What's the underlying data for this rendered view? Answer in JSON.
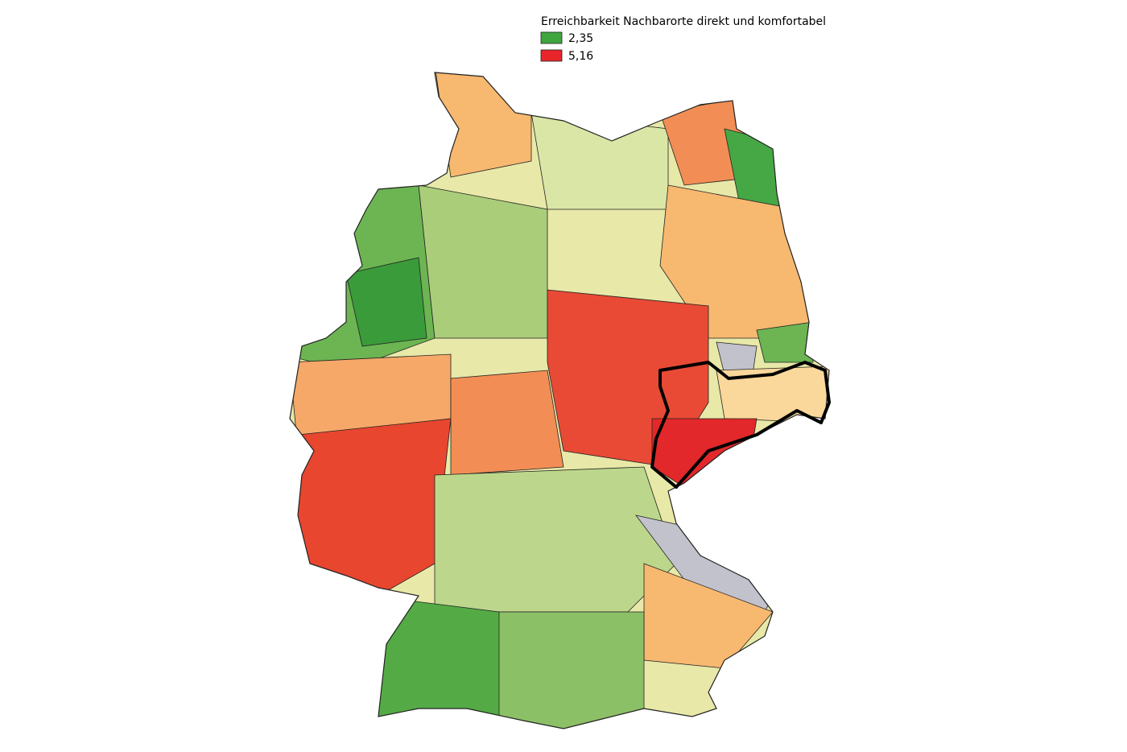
{
  "legend": {
    "title": "Erreichbarkeit Nachbarorte direkt und komfortabel",
    "items": [
      {
        "label": "2,35",
        "color": "#3fa63f"
      },
      {
        "label": "5,16",
        "color": "#e8262a"
      }
    ]
  }
}
